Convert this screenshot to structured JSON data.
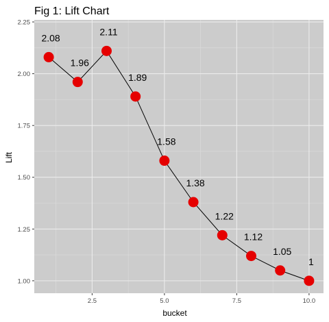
{
  "chart_data": {
    "type": "line",
    "title": "Fig 1: Lift Chart",
    "xlabel": "bucket",
    "ylabel": "Lift",
    "x": [
      1,
      2,
      3,
      4,
      5,
      6,
      7,
      8,
      9,
      10
    ],
    "series": [
      {
        "values": [
          2.08,
          1.96,
          2.11,
          1.89,
          1.58,
          1.38,
          1.22,
          1.12,
          1.05,
          1.0
        ]
      }
    ],
    "data_labels": [
      "2.08",
      "1.96",
      "2.11",
      "1.89",
      "1.58",
      "1.38",
      "1.22",
      "1.12",
      "1.05",
      "1"
    ],
    "xlim": [
      0.5,
      10.5
    ],
    "ylim": [
      0.94,
      2.26
    ],
    "x_ticks": [
      2.5,
      5.0,
      7.5,
      10.0
    ],
    "x_tick_labels": [
      "2.5",
      "5.0",
      "7.5",
      "10.0"
    ],
    "y_ticks": [
      1.0,
      1.25,
      1.5,
      1.75,
      2.0,
      2.25
    ],
    "y_tick_labels": [
      "1.00",
      "1.25",
      "1.50",
      "1.75",
      "2.00",
      "2.25"
    ],
    "grid": true,
    "legend": "none",
    "colors": {
      "panel_background": "#cccccc",
      "grid_major": "#ececec",
      "grid_minor": "#dcdcdc",
      "line": "#000000",
      "point": "#e50000"
    }
  }
}
